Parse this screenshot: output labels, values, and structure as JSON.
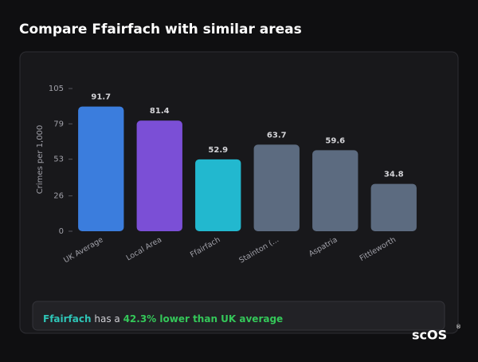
{
  "header": {
    "title": "Compare Ffairfach with similar areas"
  },
  "chart_data": {
    "type": "bar",
    "y_label": "Crimes per 1,000",
    "categories": [
      "UK Average",
      "Local Area",
      "Ffairfach",
      "Stainton (...",
      "Aspatria",
      "Fittleworth"
    ],
    "values": [
      91.7,
      81.4,
      52.9,
      63.7,
      59.6,
      34.8
    ],
    "colors": [
      "#3b7ddd",
      "#7b4fd6",
      "#22b8cf",
      "#5c6b80",
      "#5c6b80",
      "#5c6b80"
    ],
    "ylim": [
      0,
      105
    ],
    "yticks": [
      0,
      26,
      53,
      79,
      105
    ],
    "grid": false
  },
  "footer": {
    "area": "Ffairfach",
    "text": "has a",
    "highlight": "42.3% lower than UK average"
  },
  "logo": {
    "text": "scOS",
    "mark": "®"
  }
}
